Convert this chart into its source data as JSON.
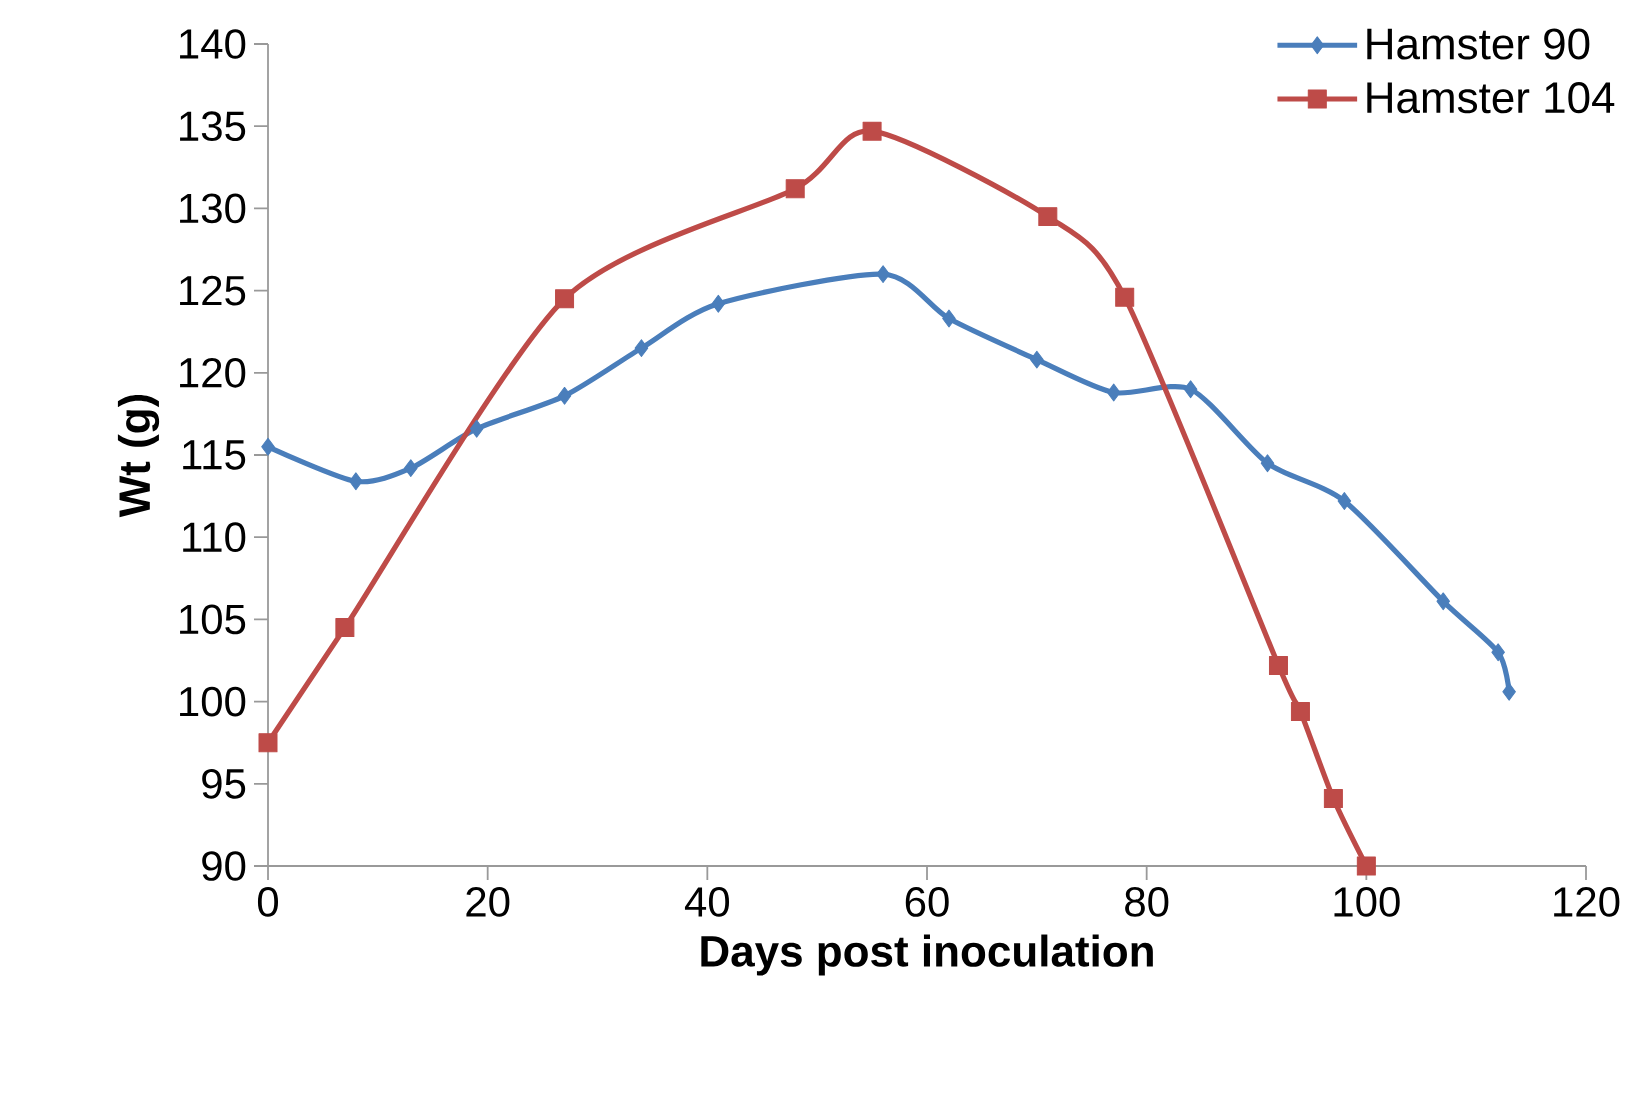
{
  "chart_data": {
    "type": "line",
    "xlabel": "Days post inoculation",
    "ylabel": "Wt (g)",
    "xlim": [
      0,
      120
    ],
    "xticks": [
      0,
      20,
      40,
      60,
      80,
      100,
      120
    ],
    "ylim": [
      90,
      140
    ],
    "yticks": [
      90,
      95,
      100,
      105,
      110,
      115,
      120,
      125,
      130,
      135,
      140
    ],
    "legend": "top right",
    "grid": false,
    "line_style": "solid",
    "series": [
      {
        "name": "Hamster 90",
        "color": "#4a7ebb",
        "marker": "diamond",
        "x": [
          0,
          8,
          13,
          19,
          27,
          34,
          41,
          56,
          62,
          70,
          77,
          84,
          91,
          98,
          107,
          112,
          113
        ],
        "values": [
          115.5,
          113.4,
          114.2,
          116.6,
          118.6,
          121.5,
          124.2,
          126.0,
          123.3,
          120.8,
          118.8,
          119.0,
          114.5,
          112.2,
          106.1,
          103.0,
          100.6
        ]
      },
      {
        "name": "Hamster 104",
        "color": "#be4b48",
        "marker": "square",
        "x": [
          0,
          7,
          27,
          48,
          55,
          71,
          78,
          92,
          94,
          97,
          100
        ],
        "values": [
          97.5,
          104.5,
          124.5,
          131.2,
          134.7,
          129.5,
          124.6,
          102.2,
          99.4,
          94.1,
          90.0
        ]
      }
    ]
  }
}
